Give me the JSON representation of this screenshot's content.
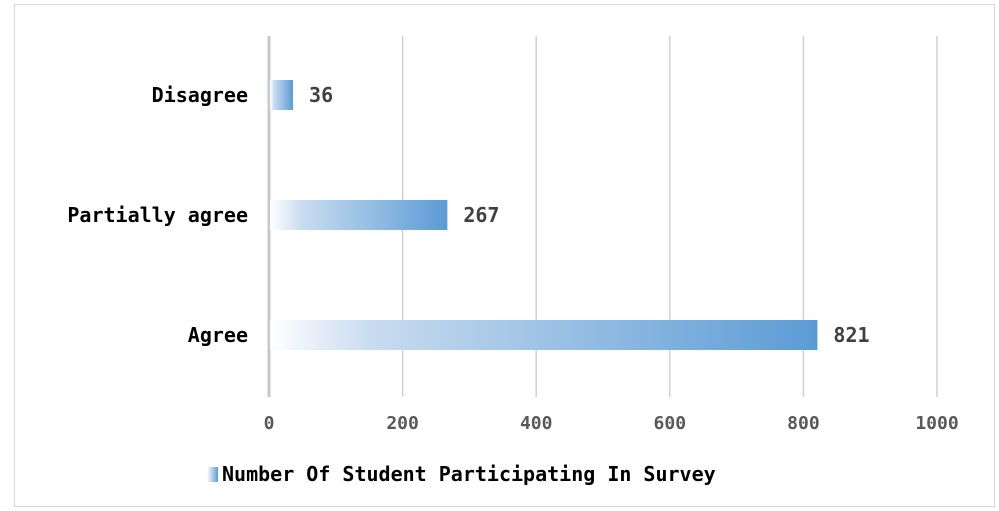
{
  "chart_data": {
    "type": "bar",
    "orientation": "horizontal",
    "categories": [
      "Disagree",
      "Partially agree",
      "Agree"
    ],
    "series": [
      {
        "name": "Number Of Student Participating In Survey",
        "values": [
          36,
          267,
          821
        ]
      }
    ],
    "data_labels": [
      "36",
      "267",
      "821"
    ],
    "xlim": [
      0,
      1000
    ],
    "x_ticks": [
      "0",
      "200",
      "400",
      "600",
      "800",
      "1000"
    ],
    "grid": true,
    "legend_position": "bottom",
    "colors": {
      "bar": "#5b9bd5",
      "bar_fade": "#ffffff",
      "grid": "#d0d0d0",
      "axis": "#d0d0d0"
    }
  }
}
